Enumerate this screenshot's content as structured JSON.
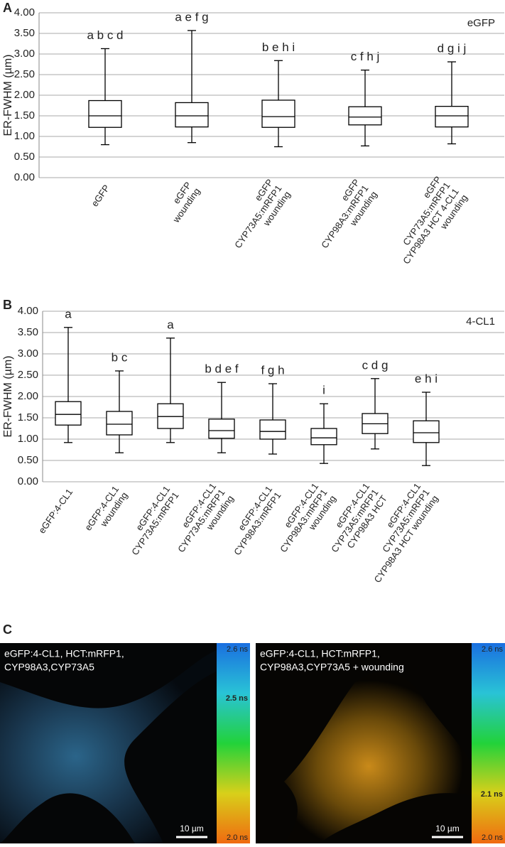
{
  "chart_data": [
    {
      "type": "box",
      "panel_label": "A",
      "y_label": "ER-FWHM (µm)",
      "corner_label": "eGFP",
      "ylim": [
        0,
        4
      ],
      "yticks": [
        {
          "value": 0,
          "label": "0.00"
        },
        {
          "value": 0.5,
          "label": "0.50"
        },
        {
          "value": 1,
          "label": "1.00"
        },
        {
          "value": 1.5,
          "label": "1.50"
        },
        {
          "value": 2,
          "label": "2.00"
        },
        {
          "value": 2.5,
          "label": "2.50"
        },
        {
          "value": 3,
          "label": "3.00"
        },
        {
          "value": 3.5,
          "label": "3.50"
        },
        {
          "value": 4,
          "label": "4.00"
        }
      ],
      "grid": true,
      "color": "#000000",
      "categories": [
        [
          "eGFP"
        ],
        [
          "eGFP",
          "wounding"
        ],
        [
          "eGFP",
          "CYP73A5:mRFP1",
          "wounding"
        ],
        [
          "eGFP",
          "CYP98A3:mRFP1",
          "wounding"
        ],
        [
          "eGFP",
          "CYP73A5:mRFP1",
          "CYP98A3  HCT 4-CL1",
          "wounding"
        ]
      ],
      "annotations": [
        "a b c d",
        "a e f g",
        "b e h i",
        "c f h j",
        "d g i j"
      ],
      "boxes": [
        {
          "min": 0.8,
          "q1": 1.22,
          "median": 1.5,
          "q3": 1.87,
          "max": 3.13
        },
        {
          "min": 0.85,
          "q1": 1.23,
          "median": 1.5,
          "q3": 1.82,
          "max": 3.57
        },
        {
          "min": 0.75,
          "q1": 1.22,
          "median": 1.48,
          "q3": 1.88,
          "max": 2.84
        },
        {
          "min": 0.77,
          "q1": 1.28,
          "median": 1.47,
          "q3": 1.72,
          "max": 2.61
        },
        {
          "min": 0.82,
          "q1": 1.23,
          "median": 1.5,
          "q3": 1.73,
          "max": 2.81
        }
      ]
    },
    {
      "type": "box",
      "panel_label": "B",
      "y_label": "ER-FWHM (µm)",
      "corner_label": "4-CL1",
      "ylim": [
        0,
        4
      ],
      "yticks": [
        {
          "value": 0,
          "label": "0.00"
        },
        {
          "value": 0.5,
          "label": "0.50"
        },
        {
          "value": 1,
          "label": "1.00"
        },
        {
          "value": 1.5,
          "label": "1.50"
        },
        {
          "value": 2,
          "label": "2.00"
        },
        {
          "value": 2.5,
          "label": "2.50"
        },
        {
          "value": 3,
          "label": "3.00"
        },
        {
          "value": 3.5,
          "label": "3.50"
        },
        {
          "value": 4,
          "label": "4.00"
        }
      ],
      "grid": true,
      "color": "#000000",
      "categories": [
        [
          "eGFP:4-CL1"
        ],
        [
          "eGFP:4-CL1",
          "wounding"
        ],
        [
          "eGFP:4-CL1",
          "CYP73A5:mRFP1"
        ],
        [
          "eGFP:4-CL1",
          "CYP73A5:mRFP1",
          "wounding"
        ],
        [
          "eGFP:4-CL1",
          "CYP98A3:mRFP1"
        ],
        [
          "eGFP:4-CL1",
          "CYP98A3:mRFP1",
          "wounding"
        ],
        [
          "eGFP:4-CL1",
          "CYP73A5:mRFP1",
          "CYP98A3  HCT"
        ],
        [
          "eGFP:4-CL1",
          "CYP73A5:mRFP1",
          "CYP98A3  HCT  wounding"
        ]
      ],
      "annotations": [
        "a",
        "b c",
        "a",
        "b d e f",
        "f g h",
        "i",
        "c d g",
        "e h i"
      ],
      "boxes": [
        {
          "min": 0.92,
          "q1": 1.33,
          "median": 1.58,
          "q3": 1.88,
          "max": 3.62
        },
        {
          "min": 0.68,
          "q1": 1.1,
          "median": 1.35,
          "q3": 1.65,
          "max": 2.6
        },
        {
          "min": 0.92,
          "q1": 1.25,
          "median": 1.53,
          "q3": 1.83,
          "max": 3.37
        },
        {
          "min": 0.68,
          "q1": 1.02,
          "median": 1.2,
          "q3": 1.47,
          "max": 2.33
        },
        {
          "min": 0.65,
          "q1": 1.0,
          "median": 1.18,
          "q3": 1.45,
          "max": 2.3
        },
        {
          "min": 0.43,
          "q1": 0.87,
          "median": 1.03,
          "q3": 1.25,
          "max": 1.83
        },
        {
          "min": 0.77,
          "q1": 1.13,
          "median": 1.36,
          "q3": 1.6,
          "max": 2.42
        },
        {
          "min": 0.38,
          "q1": 0.92,
          "median": 1.15,
          "q3": 1.43,
          "max": 2.1
        }
      ]
    }
  ],
  "panel_c": {
    "label": "C",
    "images": [
      {
        "caption": [
          "eGFP:4-CL1, HCT:mRFP1,",
          "CYP98A3,CYP73A5"
        ],
        "scale_bar": "10 µm",
        "colorbar_top": "2.6 ns",
        "colorbar_marker": "2.5 ns",
        "colorbar_bottom": "2.0 ns"
      },
      {
        "caption": [
          "eGFP:4-CL1, HCT:mRFP1,",
          "CYP98A3,CYP73A5 + wounding"
        ],
        "scale_bar": "10 µm",
        "colorbar_top": "2.6 ns",
        "colorbar_marker": "2.1 ns",
        "colorbar_bottom": "2.0 ns"
      }
    ]
  }
}
